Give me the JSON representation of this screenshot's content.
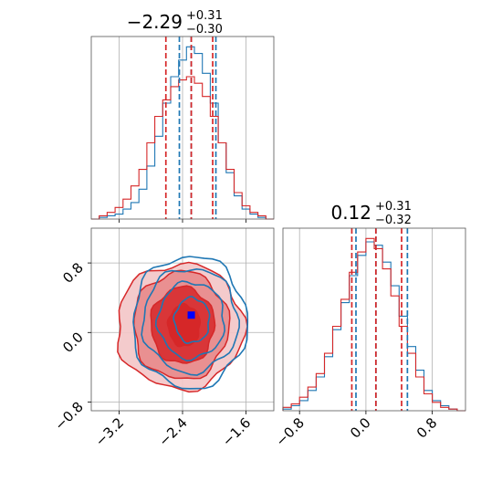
{
  "colors": {
    "blue": "#1f77b4",
    "red": "#d62728",
    "marker": "#0000ff"
  },
  "titles": {
    "p1": {
      "main": "−2.29",
      "sup": "+0.31",
      "sub": "−0.30"
    },
    "p2": {
      "main": "0.12",
      "sup": "+0.31",
      "sub": "−0.32"
    }
  },
  "chart_data": [
    {
      "type": "histogram",
      "title": "−2.29 +0.31 −0.30",
      "xlim": [
        -3.55,
        -1.25
      ],
      "xticks": [
        -3.2,
        -2.4,
        -1.6
      ],
      "grid": true,
      "series": [
        {
          "color": "#1f77b4",
          "bin_edges": [
            -3.55,
            -3.45,
            -3.35,
            -3.25,
            -3.15,
            -3.05,
            -2.95,
            -2.85,
            -2.75,
            -2.65,
            -2.55,
            -2.45,
            -2.35,
            -2.25,
            -2.15,
            -2.05,
            -1.95,
            -1.85,
            -1.75,
            -1.65,
            -1.55,
            -1.45,
            -1.35,
            -1.25
          ],
          "values": [
            0,
            1,
            2,
            3,
            6,
            10,
            18,
            32,
            50,
            70,
            86,
            96,
            104,
            100,
            88,
            70,
            46,
            28,
            14,
            6,
            3,
            1,
            0
          ],
          "quantiles": [
            -2.44,
            -2.29,
            -1.98
          ]
        },
        {
          "color": "#d62728",
          "bin_edges": [
            -3.55,
            -3.45,
            -3.35,
            -3.25,
            -3.15,
            -3.05,
            -2.95,
            -2.85,
            -2.75,
            -2.65,
            -2.55,
            -2.45,
            -2.35,
            -2.25,
            -2.15,
            -2.05,
            -1.95,
            -1.85,
            -1.75,
            -1.65,
            -1.55,
            -1.45,
            -1.35,
            -1.25
          ],
          "values": [
            0,
            2,
            4,
            7,
            12,
            20,
            30,
            46,
            62,
            72,
            80,
            84,
            86,
            82,
            74,
            62,
            46,
            30,
            16,
            8,
            4,
            2,
            0
          ],
          "quantiles": [
            -2.61,
            -2.29,
            -2.02
          ]
        }
      ]
    },
    {
      "type": "histogram",
      "title": "0.12 +0.31 −0.32",
      "xlim": [
        -1.0,
        1.2
      ],
      "xticks": [
        -0.8,
        0.0,
        0.8
      ],
      "grid": true,
      "series": [
        {
          "color": "#1f77b4",
          "bin_edges": [
            -1.0,
            -0.9,
            -0.8,
            -0.7,
            -0.6,
            -0.5,
            -0.4,
            -0.3,
            -0.2,
            -0.1,
            0.0,
            0.1,
            0.2,
            0.3,
            0.4,
            0.5,
            0.6,
            0.7,
            0.8,
            0.9,
            1.0,
            1.1,
            1.2
          ],
          "values": [
            1,
            3,
            6,
            12,
            20,
            32,
            48,
            64,
            80,
            92,
            100,
            98,
            88,
            74,
            56,
            38,
            24,
            12,
            6,
            3,
            1,
            0
          ],
          "quantiles": [
            -0.12,
            0.12,
            0.5
          ]
        },
        {
          "color": "#d62728",
          "bin_edges": [
            -1.0,
            -0.9,
            -0.8,
            -0.7,
            -0.6,
            -0.5,
            -0.4,
            -0.3,
            -0.2,
            -0.1,
            0.0,
            0.1,
            0.2,
            0.3,
            0.4,
            0.5,
            0.6,
            0.7,
            0.8,
            0.9,
            1.0,
            1.1,
            1.2
          ],
          "values": [
            2,
            4,
            8,
            14,
            22,
            34,
            50,
            66,
            82,
            94,
            102,
            96,
            84,
            68,
            50,
            34,
            20,
            10,
            5,
            2,
            1,
            0
          ],
          "quantiles": [
            -0.17,
            0.12,
            0.43
          ]
        }
      ]
    },
    {
      "type": "contour",
      "xlim": [
        -3.55,
        -1.25
      ],
      "ylim": [
        -0.9,
        1.2
      ],
      "xticks": [
        -3.2,
        -2.4,
        -1.6
      ],
      "yticks": [
        -0.8,
        0.0,
        0.8
      ],
      "grid": true,
      "marker": {
        "x": -2.29,
        "y": 0.2,
        "color": "#0000ff"
      },
      "red_contours": [
        {
          "cx": -2.38,
          "cy": 0.08,
          "rx": 0.2,
          "ry": 0.24,
          "fill": "#d62728",
          "opacity": 1.0
        },
        {
          "cx": -2.4,
          "cy": 0.08,
          "rx": 0.4,
          "ry": 0.44,
          "fill": "#d62728",
          "opacity": 0.85
        },
        {
          "cx": -2.42,
          "cy": 0.08,
          "rx": 0.6,
          "ry": 0.62,
          "fill": "#e88a8b",
          "opacity": 0.9
        },
        {
          "cx": -2.43,
          "cy": 0.07,
          "rx": 0.8,
          "ry": 0.72,
          "fill": "#f3c5c6",
          "opacity": 0.9
        }
      ],
      "blue_contours": [
        {
          "cx": -2.28,
          "cy": 0.14,
          "rx": 0.22,
          "ry": 0.26
        },
        {
          "cx": -2.29,
          "cy": 0.14,
          "rx": 0.42,
          "ry": 0.44
        },
        {
          "cx": -2.3,
          "cy": 0.14,
          "rx": 0.6,
          "ry": 0.6
        },
        {
          "cx": -2.31,
          "cy": 0.12,
          "rx": 0.72,
          "ry": 0.76
        }
      ]
    }
  ]
}
